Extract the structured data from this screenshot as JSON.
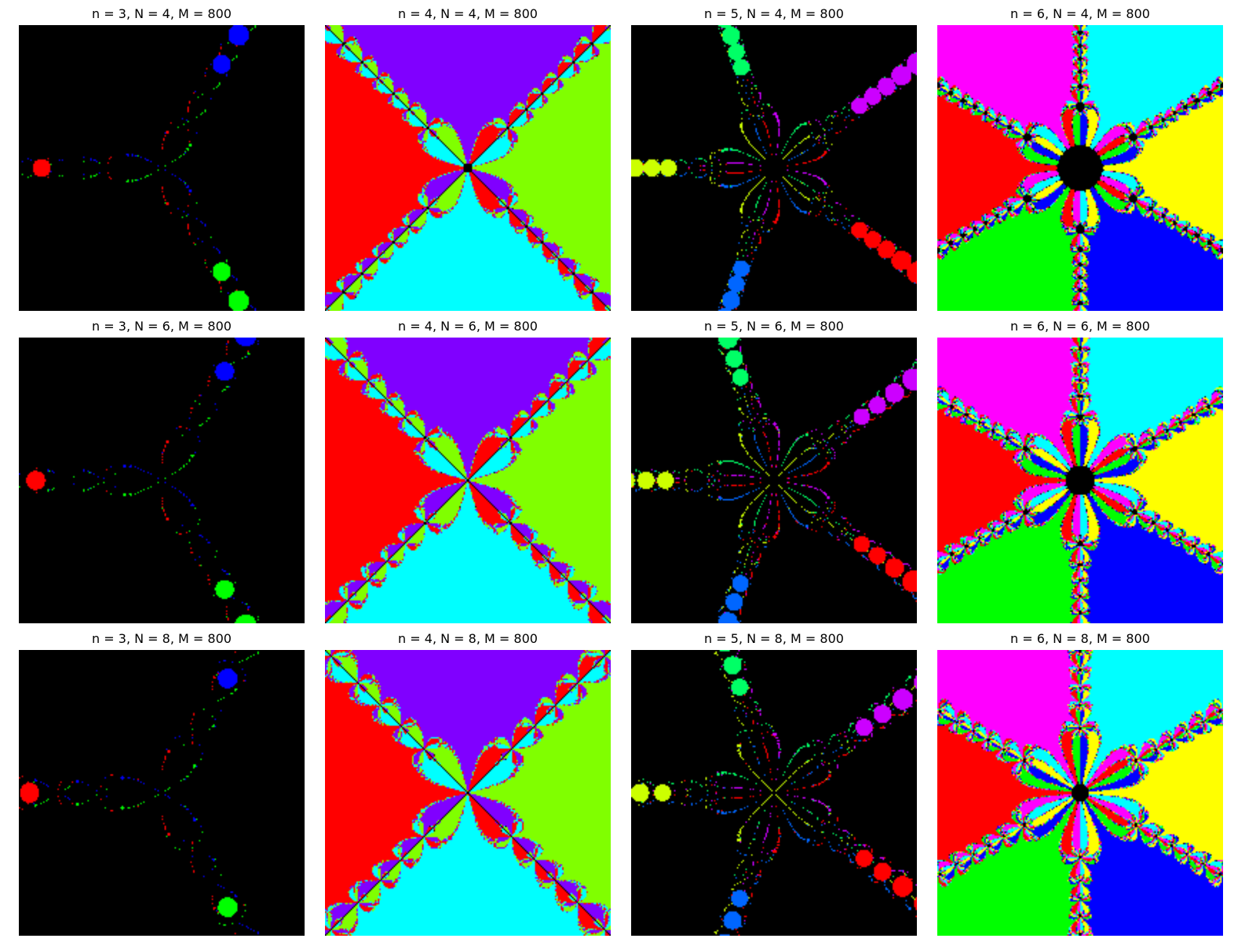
{
  "panels": [
    {
      "title": "n = 3, N = 4, M = 800",
      "n": 3,
      "N": 4,
      "M": 800
    },
    {
      "title": "n = 4, N = 4, M = 800",
      "n": 4,
      "N": 4,
      "M": 800
    },
    {
      "title": "n = 5, N = 4, M = 800",
      "n": 5,
      "N": 4,
      "M": 800
    },
    {
      "title": "n = 6, N = 4, M = 800",
      "n": 6,
      "N": 4,
      "M": 800
    },
    {
      "title": "n = 3, N = 6, M = 800",
      "n": 3,
      "N": 6,
      "M": 800
    },
    {
      "title": "n = 4, N = 6, M = 800",
      "n": 4,
      "N": 6,
      "M": 800
    },
    {
      "title": "n = 5, N = 6, M = 800",
      "n": 5,
      "N": 6,
      "M": 800
    },
    {
      "title": "n = 6, N = 6, M = 800",
      "n": 6,
      "N": 6,
      "M": 800
    },
    {
      "title": "n = 3, N = 8, M = 800",
      "n": 3,
      "N": 8,
      "M": 800
    },
    {
      "title": "n = 4, N = 8, M = 800",
      "n": 4,
      "N": 8,
      "M": 800
    },
    {
      "title": "n = 5, N = 8, M = 800",
      "n": 5,
      "N": 8,
      "M": 800
    },
    {
      "title": "n = 6, N = 8, M = 800",
      "n": 6,
      "N": 8,
      "M": 800
    }
  ],
  "basin_colors": {
    "3": [
      "#ff0000",
      "#00ff00",
      "#0000ff"
    ],
    "4": [
      "#ff0000",
      "#00ffff",
      "#80ff00",
      "#8000ff"
    ],
    "5": [
      "#ccff00",
      "#0066ff",
      "#ff0000",
      "#cc00ff",
      "#00ff66"
    ],
    "6": [
      "#ff0000",
      "#00ff00",
      "#0000ff",
      "#ffff00",
      "#00ffff",
      "#ff00ff"
    ]
  },
  "boundary_color": "#000000"
}
